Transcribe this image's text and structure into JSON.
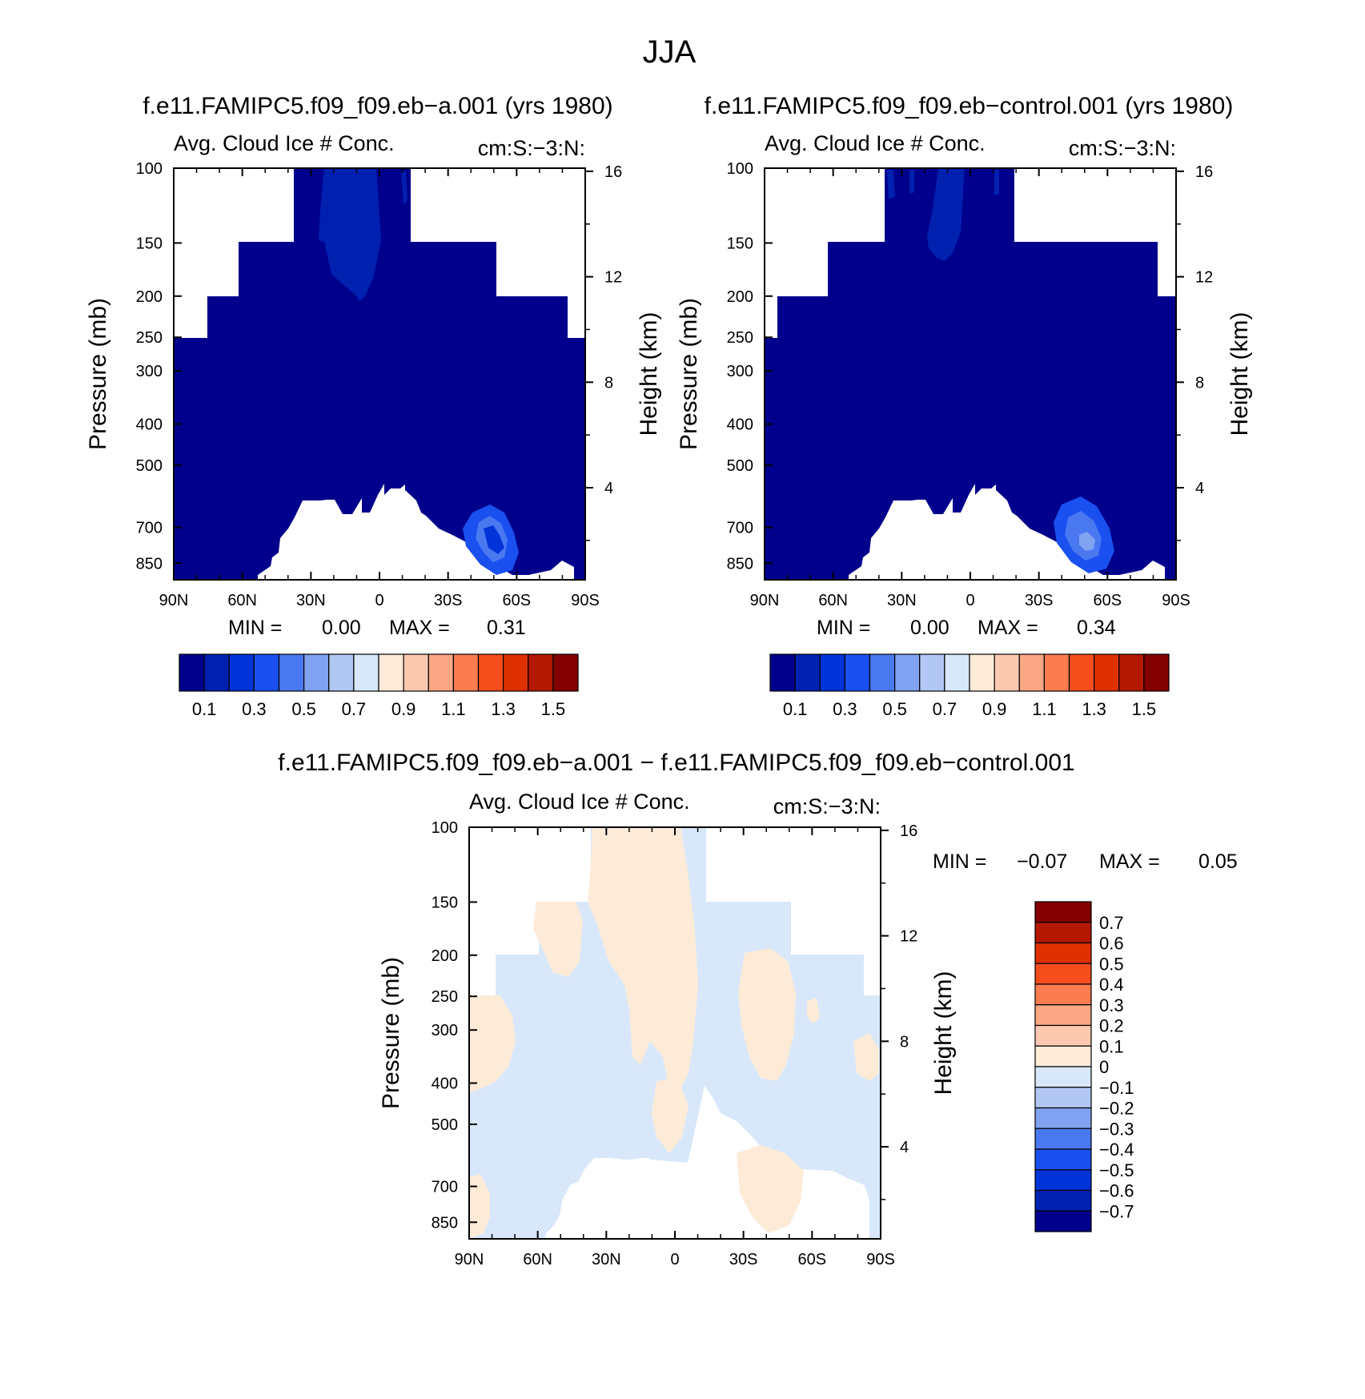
{
  "figure": {
    "title": "JJA"
  },
  "colors": {
    "abs_palette": [
      "#00008c",
      "#0020b0",
      "#0034d8",
      "#1a50f0",
      "#4a78f0",
      "#80a2f0",
      "#b2c8f4",
      "#d8e8fa",
      "#fdebd8",
      "#fcc9b0",
      "#fba784",
      "#fa7c4f",
      "#f64d1c",
      "#df3000",
      "#b41800",
      "#820000"
    ],
    "diff_palette": [
      "#00008c",
      "#0020b0",
      "#0034d8",
      "#1a50f0",
      "#4a78f0",
      "#80a2f0",
      "#b2c8f4",
      "#d8e8fa",
      "#fdebd8",
      "#fcc9b0",
      "#fba784",
      "#fa7c4f",
      "#f64d1c",
      "#df3000",
      "#b41800",
      "#820000"
    ]
  },
  "chart_data": [
    {
      "type": "heatmap",
      "title": "f.e11.FAMIPC5.f09_f09.eb−a.001 (yrs 1980)",
      "left_label": "Avg. Cloud Ice # Conc.",
      "right_label": "cm:S:−3:N:",
      "ylabel": "Pressure (mb)",
      "y2label": "Height (km)",
      "x_ticks": [
        "90N",
        "60N",
        "30N",
        "0",
        "30S",
        "60S",
        "90S"
      ],
      "x_values": [
        90,
        60,
        30,
        0,
        -30,
        -60,
        -90
      ],
      "y_ticks": [
        "100",
        "150",
        "200",
        "250",
        "300",
        "400",
        "500",
        "700",
        "850"
      ],
      "y2_ticks": [
        "16",
        "12",
        "8",
        "4"
      ],
      "stats": {
        "min_label": "MIN =",
        "min": "0.00",
        "max_label": "MAX =",
        "max": "0.31"
      },
      "colorbar": {
        "orientation": "horizontal",
        "labels": [
          "0.1",
          "0.3",
          "0.5",
          "0.7",
          "0.9",
          "1.1",
          "1.3",
          "1.5"
        ]
      }
    },
    {
      "type": "heatmap",
      "title": "f.e11.FAMIPC5.f09_f09.eb−control.001 (yrs 1980)",
      "left_label": "Avg. Cloud Ice # Conc.",
      "right_label": "cm:S:−3:N:",
      "ylabel": "Pressure (mb)",
      "y2label": "Height (km)",
      "x_ticks": [
        "90N",
        "60N",
        "30N",
        "0",
        "30S",
        "60S",
        "90S"
      ],
      "x_values": [
        90,
        60,
        30,
        0,
        -30,
        -60,
        -90
      ],
      "y_ticks": [
        "100",
        "150",
        "200",
        "250",
        "300",
        "400",
        "500",
        "700",
        "850"
      ],
      "y2_ticks": [
        "16",
        "12",
        "8",
        "4"
      ],
      "stats": {
        "min_label": "MIN =",
        "min": "0.00",
        "max_label": "MAX =",
        "max": "0.34"
      },
      "colorbar": {
        "orientation": "horizontal",
        "labels": [
          "0.1",
          "0.3",
          "0.5",
          "0.7",
          "0.9",
          "1.1",
          "1.3",
          "1.5"
        ]
      }
    },
    {
      "type": "heatmap",
      "title": "f.e11.FAMIPC5.f09_f09.eb−a.001 − f.e11.FAMIPC5.f09_f09.eb−control.001",
      "left_label": "Avg. Cloud Ice # Conc.",
      "right_label": "cm:S:−3:N:",
      "ylabel": "Pressure (mb)",
      "y2label": "Height (km)",
      "x_ticks": [
        "90N",
        "60N",
        "30N",
        "0",
        "30S",
        "60S",
        "90S"
      ],
      "x_values": [
        90,
        60,
        30,
        0,
        -30,
        -60,
        -90
      ],
      "y_ticks": [
        "100",
        "150",
        "200",
        "250",
        "300",
        "400",
        "500",
        "700",
        "850"
      ],
      "y2_ticks": [
        "16",
        "12",
        "8",
        "4"
      ],
      "stats": {
        "min_label": "MIN =",
        "min": "−0.07",
        "max_label": "MAX =",
        "max": "0.05"
      },
      "colorbar": {
        "orientation": "vertical",
        "labels": [
          "0.7",
          "0.6",
          "0.5",
          "0.4",
          "0.3",
          "0.2",
          "0.1",
          "0",
          "−0.1",
          "−0.2",
          "−0.3",
          "−0.4",
          "−0.5",
          "−0.6",
          "−0.7"
        ]
      }
    }
  ]
}
